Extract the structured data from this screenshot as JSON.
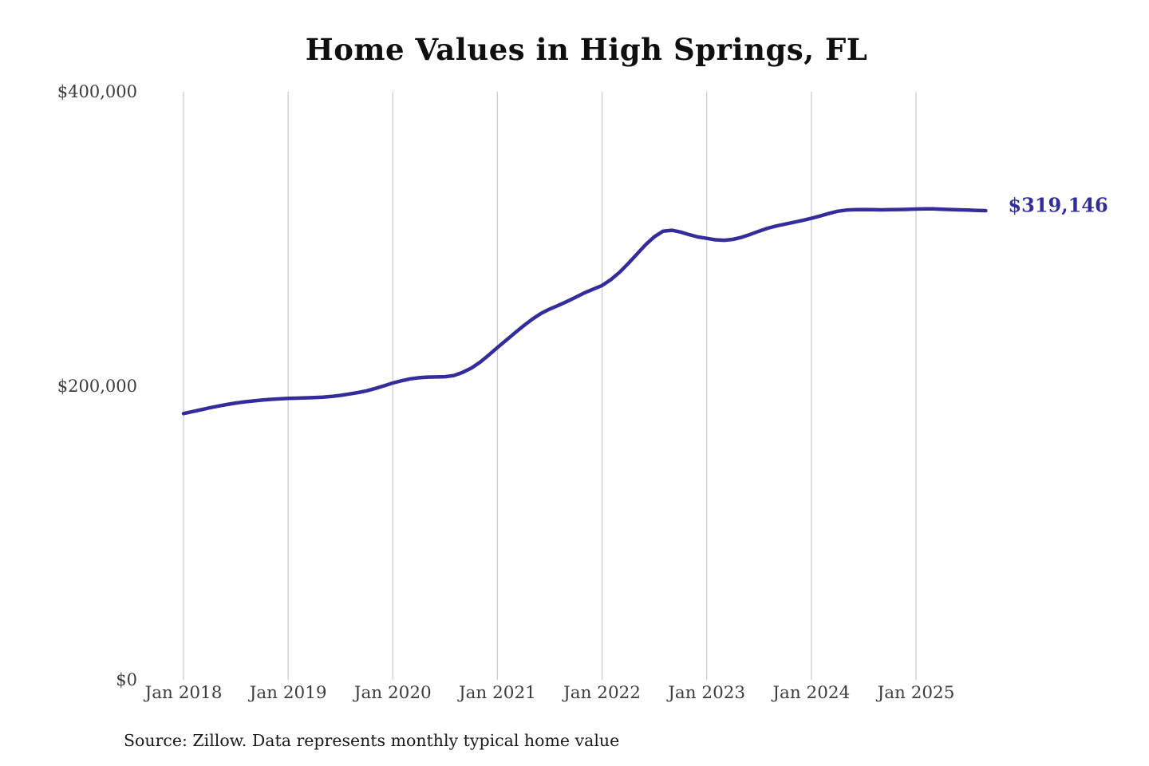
{
  "chart_data": {
    "type": "line",
    "title": "Home Values in High Springs, FL",
    "source_note": "Source: Zillow. Data represents monthly typical home value",
    "end_label": "$319,146",
    "end_value": 319146,
    "line_color": "#332d9b",
    "grid_color": "#cbcbcb",
    "x_start": "2018-01",
    "x_end": "2025-09",
    "frequency": "monthly",
    "x_tick_labels": [
      "Jan 2018",
      "Jan 2019",
      "Jan 2020",
      "Jan 2021",
      "Jan 2022",
      "Jan 2023",
      "Jan 2024",
      "Jan 2025"
    ],
    "x_tick_month_step": 12,
    "y_ticks": [
      0,
      200000,
      400000
    ],
    "y_tick_labels": [
      "$0",
      "$200,000",
      "$400,000"
    ],
    "ylim": [
      0,
      400000
    ],
    "grid": "vertical-only",
    "legend": "none",
    "series_name": "Monthly typical home value",
    "values": [
      181100,
      182400,
      183700,
      185000,
      186200,
      187300,
      188300,
      189100,
      189700,
      190300,
      190800,
      191100,
      191400,
      191600,
      191800,
      192000,
      192300,
      192800,
      193500,
      194400,
      195400,
      196600,
      198200,
      200000,
      201900,
      203400,
      204700,
      205500,
      205900,
      206000,
      206200,
      207000,
      209100,
      212000,
      216000,
      220900,
      226000,
      231000,
      236000,
      240800,
      245300,
      249200,
      252200,
      254700,
      257400,
      260300,
      263300,
      265800,
      268200,
      272200,
      277200,
      283200,
      289600,
      296000,
      301400,
      305200,
      305800,
      304600,
      302800,
      301200,
      300300,
      299300,
      299000,
      299600,
      301000,
      303000,
      305200,
      307200,
      308700,
      310000,
      311200,
      312500,
      313900,
      315500,
      317200,
      318700,
      319500,
      319800,
      319900,
      319800,
      319700,
      319800,
      319900,
      320000,
      320200,
      320400,
      320300,
      320100,
      319900,
      319700,
      319500,
      319300,
      319146
    ]
  }
}
